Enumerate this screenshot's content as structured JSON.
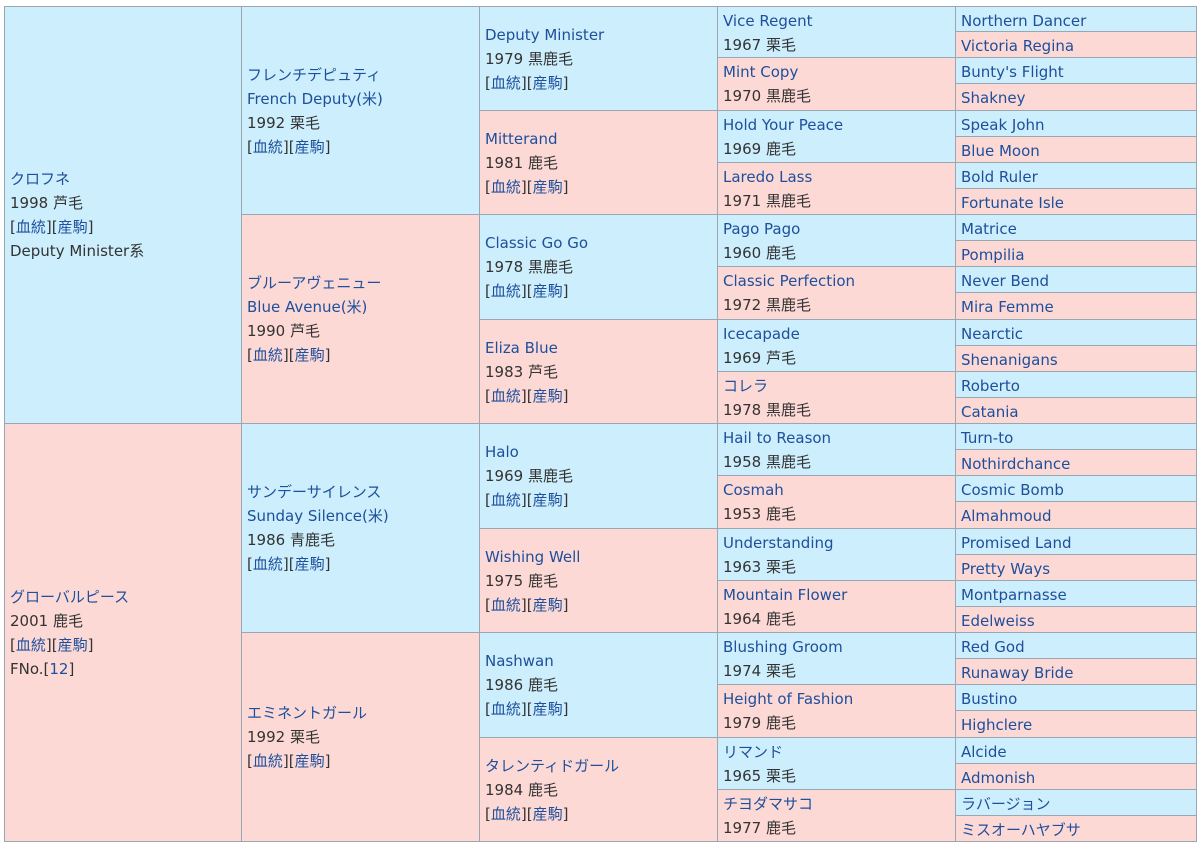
{
  "labels": {
    "ketto": "血統",
    "sanku": "産駒",
    "fno_label": "FNo."
  },
  "colors": {
    "male_bg": "#cdeefc",
    "female_bg": "#fdd9d6",
    "link": "#1d4f9c",
    "border": "#9aa7b3"
  },
  "g1": [
    {
      "sex": "m",
      "name": "クロフネ",
      "year": "1998",
      "coat": "芦毛",
      "links": true,
      "line": "Deputy Minister系"
    },
    {
      "sex": "f",
      "name": "グローバルピース",
      "year": "2001",
      "coat": "鹿毛",
      "links": true,
      "fno": "12"
    }
  ],
  "g2": [
    {
      "sex": "m",
      "name": "フレンチデピュティ",
      "name_en": "French Deputy(米)",
      "year": "1992",
      "coat": "栗毛",
      "links": true
    },
    {
      "sex": "f",
      "name": "ブルーアヴェニュー",
      "name_en": "Blue Avenue(米)",
      "year": "1990",
      "coat": "芦毛",
      "links": true
    },
    {
      "sex": "m",
      "name": "サンデーサイレンス",
      "name_en": "Sunday Silence(米)",
      "year": "1986",
      "coat": "青鹿毛",
      "links": true
    },
    {
      "sex": "f",
      "name": "エミネントガール",
      "year": "1992",
      "coat": "栗毛",
      "links": true
    }
  ],
  "g3": [
    {
      "sex": "m",
      "name": "Deputy Minister",
      "year": "1979",
      "coat": "黒鹿毛",
      "links": true
    },
    {
      "sex": "f",
      "name": "Mitterand",
      "year": "1981",
      "coat": "鹿毛",
      "links": true
    },
    {
      "sex": "m",
      "name": "Classic Go Go",
      "year": "1978",
      "coat": "黒鹿毛",
      "links": true
    },
    {
      "sex": "f",
      "name": "Eliza Blue",
      "year": "1983",
      "coat": "芦毛",
      "links": true
    },
    {
      "sex": "m",
      "name": "Halo",
      "year": "1969",
      "coat": "黒鹿毛",
      "links": true
    },
    {
      "sex": "f",
      "name": "Wishing Well",
      "year": "1975",
      "coat": "鹿毛",
      "links": true
    },
    {
      "sex": "m",
      "name": "Nashwan",
      "year": "1986",
      "coat": "鹿毛",
      "links": true
    },
    {
      "sex": "f",
      "name": "タレンティドガール",
      "year": "1984",
      "coat": "鹿毛",
      "links": true
    }
  ],
  "g4": [
    {
      "sex": "m",
      "name": "Vice Regent",
      "year": "1967",
      "coat": "栗毛"
    },
    {
      "sex": "f",
      "name": "Mint Copy",
      "year": "1970",
      "coat": "黒鹿毛"
    },
    {
      "sex": "m",
      "name": "Hold Your Peace",
      "year": "1969",
      "coat": "鹿毛"
    },
    {
      "sex": "f",
      "name": "Laredo Lass",
      "year": "1971",
      "coat": "黒鹿毛"
    },
    {
      "sex": "m",
      "name": "Pago Pago",
      "year": "1960",
      "coat": "鹿毛"
    },
    {
      "sex": "f",
      "name": "Classic Perfection",
      "year": "1972",
      "coat": "黒鹿毛"
    },
    {
      "sex": "m",
      "name": "Icecapade",
      "year": "1969",
      "coat": "芦毛"
    },
    {
      "sex": "f",
      "name": "コレラ",
      "year": "1978",
      "coat": "黒鹿毛"
    },
    {
      "sex": "m",
      "name": "Hail to Reason",
      "year": "1958",
      "coat": "黒鹿毛"
    },
    {
      "sex": "f",
      "name": "Cosmah",
      "year": "1953",
      "coat": "鹿毛"
    },
    {
      "sex": "m",
      "name": "Understanding",
      "year": "1963",
      "coat": "栗毛"
    },
    {
      "sex": "f",
      "name": "Mountain Flower",
      "year": "1964",
      "coat": "鹿毛"
    },
    {
      "sex": "m",
      "name": "Blushing Groom",
      "year": "1974",
      "coat": "栗毛"
    },
    {
      "sex": "f",
      "name": "Height of Fashion",
      "year": "1979",
      "coat": "鹿毛"
    },
    {
      "sex": "m",
      "name": "リマンド",
      "year": "1965",
      "coat": "栗毛"
    },
    {
      "sex": "f",
      "name": "チヨダマサコ",
      "year": "1977",
      "coat": "鹿毛"
    }
  ],
  "g5": [
    {
      "sex": "m",
      "name": "Northern Dancer"
    },
    {
      "sex": "f",
      "name": "Victoria Regina"
    },
    {
      "sex": "m",
      "name": "Bunty's Flight"
    },
    {
      "sex": "f",
      "name": "Shakney"
    },
    {
      "sex": "m",
      "name": "Speak John"
    },
    {
      "sex": "f",
      "name": "Blue Moon"
    },
    {
      "sex": "m",
      "name": "Bold Ruler"
    },
    {
      "sex": "f",
      "name": "Fortunate Isle"
    },
    {
      "sex": "m",
      "name": "Matrice"
    },
    {
      "sex": "f",
      "name": "Pompilia"
    },
    {
      "sex": "m",
      "name": "Never Bend"
    },
    {
      "sex": "f",
      "name": "Mira Femme"
    },
    {
      "sex": "m",
      "name": "Nearctic"
    },
    {
      "sex": "f",
      "name": "Shenanigans"
    },
    {
      "sex": "m",
      "name": "Roberto"
    },
    {
      "sex": "f",
      "name": "Catania"
    },
    {
      "sex": "m",
      "name": "Turn-to"
    },
    {
      "sex": "f",
      "name": "Nothirdchance"
    },
    {
      "sex": "m",
      "name": "Cosmic Bomb"
    },
    {
      "sex": "f",
      "name": "Almahmoud"
    },
    {
      "sex": "m",
      "name": "Promised Land"
    },
    {
      "sex": "f",
      "name": "Pretty Ways"
    },
    {
      "sex": "m",
      "name": "Montparnasse"
    },
    {
      "sex": "f",
      "name": "Edelweiss"
    },
    {
      "sex": "m",
      "name": "Red God"
    },
    {
      "sex": "f",
      "name": "Runaway Bride"
    },
    {
      "sex": "m",
      "name": "Bustino"
    },
    {
      "sex": "f",
      "name": "Highclere"
    },
    {
      "sex": "m",
      "name": "Alcide"
    },
    {
      "sex": "f",
      "name": "Admonish"
    },
    {
      "sex": "m",
      "name": "ラバージョン"
    },
    {
      "sex": "f",
      "name": "ミスオーハヤブサ"
    }
  ]
}
